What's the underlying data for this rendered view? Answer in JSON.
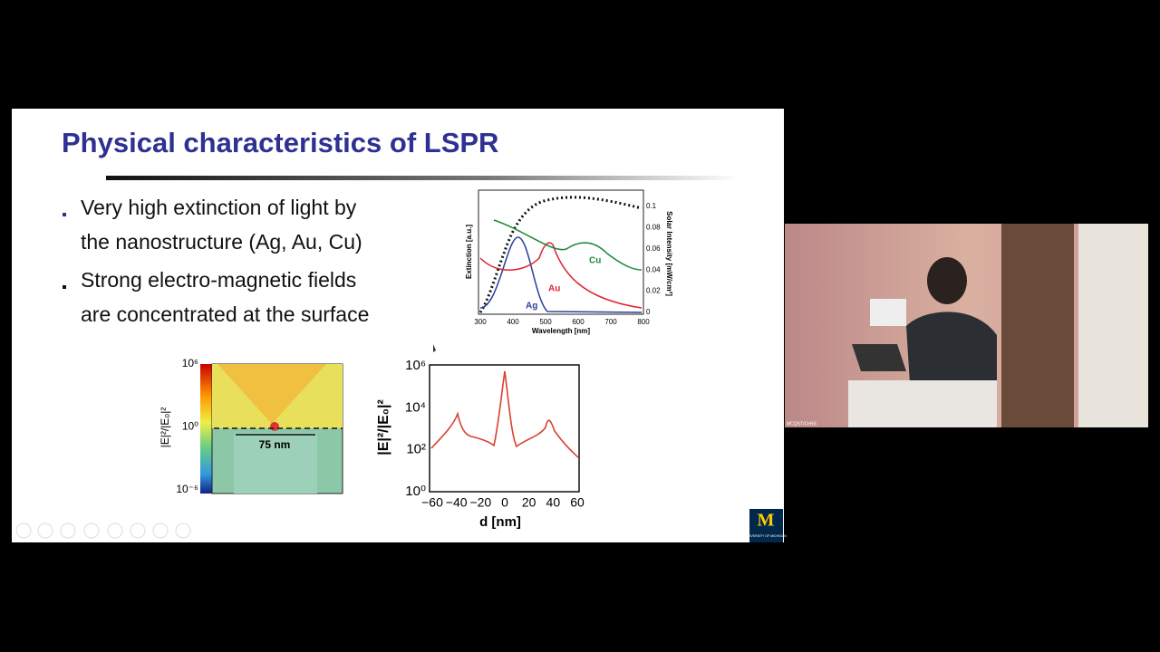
{
  "slide": {
    "title": "Physical characteristics of LSPR",
    "bullets": [
      [
        "Very high extinction of light by",
        "the nanostructure (Ag, Au, Cu)"
      ],
      [
        "Strong electro-magnetic fields",
        "are concentrated at the surface"
      ]
    ]
  },
  "spectrum": {
    "y_label": "Extinction [a.u.]",
    "x_label": "Wavelength [nm]",
    "y2_label": "Solar Intensity [mW/cm²]",
    "x_ticks": [
      "300",
      "400",
      "500",
      "600",
      "700",
      "800"
    ],
    "y2_ticks": [
      "0",
      "0.02",
      "0.04",
      "0.06",
      "0.08",
      "0.1"
    ],
    "curve_labels": [
      "Ag",
      "Au",
      "Cu"
    ]
  },
  "field_map": {
    "colorbar_ticks": [
      "10⁶",
      "10⁰",
      "10⁻⁶"
    ],
    "colorbar_label": "|E|²/|E₀|²",
    "scale_label": "75 nm"
  },
  "field_profile": {
    "y_label": "|E|²/|E₀|²",
    "y_ticks": [
      "10⁰",
      "10²",
      "10⁴",
      "10⁶"
    ],
    "x_ticks": [
      "−60",
      "−40",
      "−20",
      "0",
      "20",
      "40",
      "60"
    ],
    "x_label": "d [nm]"
  },
  "logo": {
    "letter": "M",
    "text": "UNIVERSITY OF MICHIGAN"
  },
  "video": {
    "caption": "MCQST/CeNS"
  }
}
